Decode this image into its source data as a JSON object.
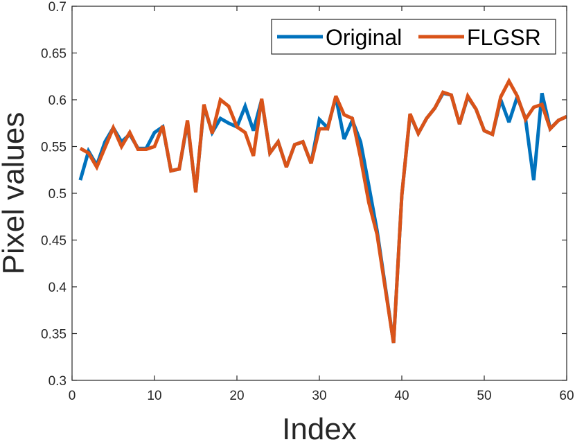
{
  "chart_data": {
    "type": "line",
    "title": "",
    "xlabel": "Index",
    "ylabel": "Pixel values",
    "xlim": [
      0,
      60
    ],
    "ylim": [
      0.3,
      0.7
    ],
    "xticks": [
      0,
      10,
      20,
      30,
      40,
      50,
      60
    ],
    "xtick_labels": [
      "0",
      "10",
      "20",
      "30",
      "40",
      "50",
      "60"
    ],
    "yticks": [
      0.3,
      0.35,
      0.4,
      0.45,
      0.5,
      0.55,
      0.6,
      0.65,
      0.7
    ],
    "ytick_labels": [
      "0.3",
      "0.35",
      "0.4",
      "0.45",
      "0.5",
      "0.55",
      "0.6",
      "0.65",
      "0.7"
    ],
    "grid": false,
    "legend_position": "top-right",
    "x": [
      1,
      2,
      3,
      4,
      5,
      6,
      7,
      8,
      9,
      10,
      11,
      12,
      13,
      14,
      15,
      16,
      17,
      18,
      19,
      20,
      21,
      22,
      23,
      24,
      25,
      26,
      27,
      28,
      29,
      30,
      31,
      32,
      33,
      34,
      35,
      36,
      37,
      38,
      39,
      40,
      41,
      42,
      43,
      44,
      45,
      46,
      47,
      48,
      49,
      50,
      51,
      52,
      53,
      54,
      55,
      56,
      57,
      58,
      59,
      60
    ],
    "series": [
      {
        "name": "Original",
        "color": "#0072BD",
        "values": [
          0.514,
          0.545,
          0.53,
          0.555,
          0.57,
          0.555,
          0.563,
          0.548,
          0.548,
          0.565,
          0.571,
          0.524,
          0.526,
          0.576,
          0.502,
          0.593,
          0.565,
          0.58,
          0.575,
          0.571,
          0.593,
          0.567,
          0.6,
          0.543,
          0.555,
          0.528,
          0.552,
          0.555,
          0.532,
          0.579,
          0.57,
          0.603,
          0.558,
          0.578,
          0.555,
          0.508,
          0.46,
          0.4,
          0.34,
          0.498,
          0.584,
          0.564,
          0.58,
          0.591,
          0.607,
          0.605,
          0.574,
          0.603,
          0.59,
          0.567,
          0.563,
          0.6,
          0.576,
          0.603,
          0.58,
          0.514,
          0.607,
          0.569,
          0.578,
          0.582
        ]
      },
      {
        "name": "FLGSR",
        "color": "#D95319",
        "values": [
          0.548,
          0.543,
          0.528,
          0.549,
          0.57,
          0.55,
          0.565,
          0.547,
          0.547,
          0.55,
          0.572,
          0.524,
          0.526,
          0.578,
          0.501,
          0.595,
          0.564,
          0.6,
          0.593,
          0.571,
          0.565,
          0.54,
          0.601,
          0.543,
          0.555,
          0.528,
          0.552,
          0.555,
          0.532,
          0.569,
          0.569,
          0.604,
          0.584,
          0.58,
          0.538,
          0.49,
          0.456,
          0.398,
          0.34,
          0.498,
          0.585,
          0.564,
          0.58,
          0.591,
          0.608,
          0.605,
          0.574,
          0.604,
          0.59,
          0.567,
          0.563,
          0.603,
          0.62,
          0.604,
          0.579,
          0.592,
          0.595,
          0.569,
          0.578,
          0.582
        ]
      }
    ]
  }
}
